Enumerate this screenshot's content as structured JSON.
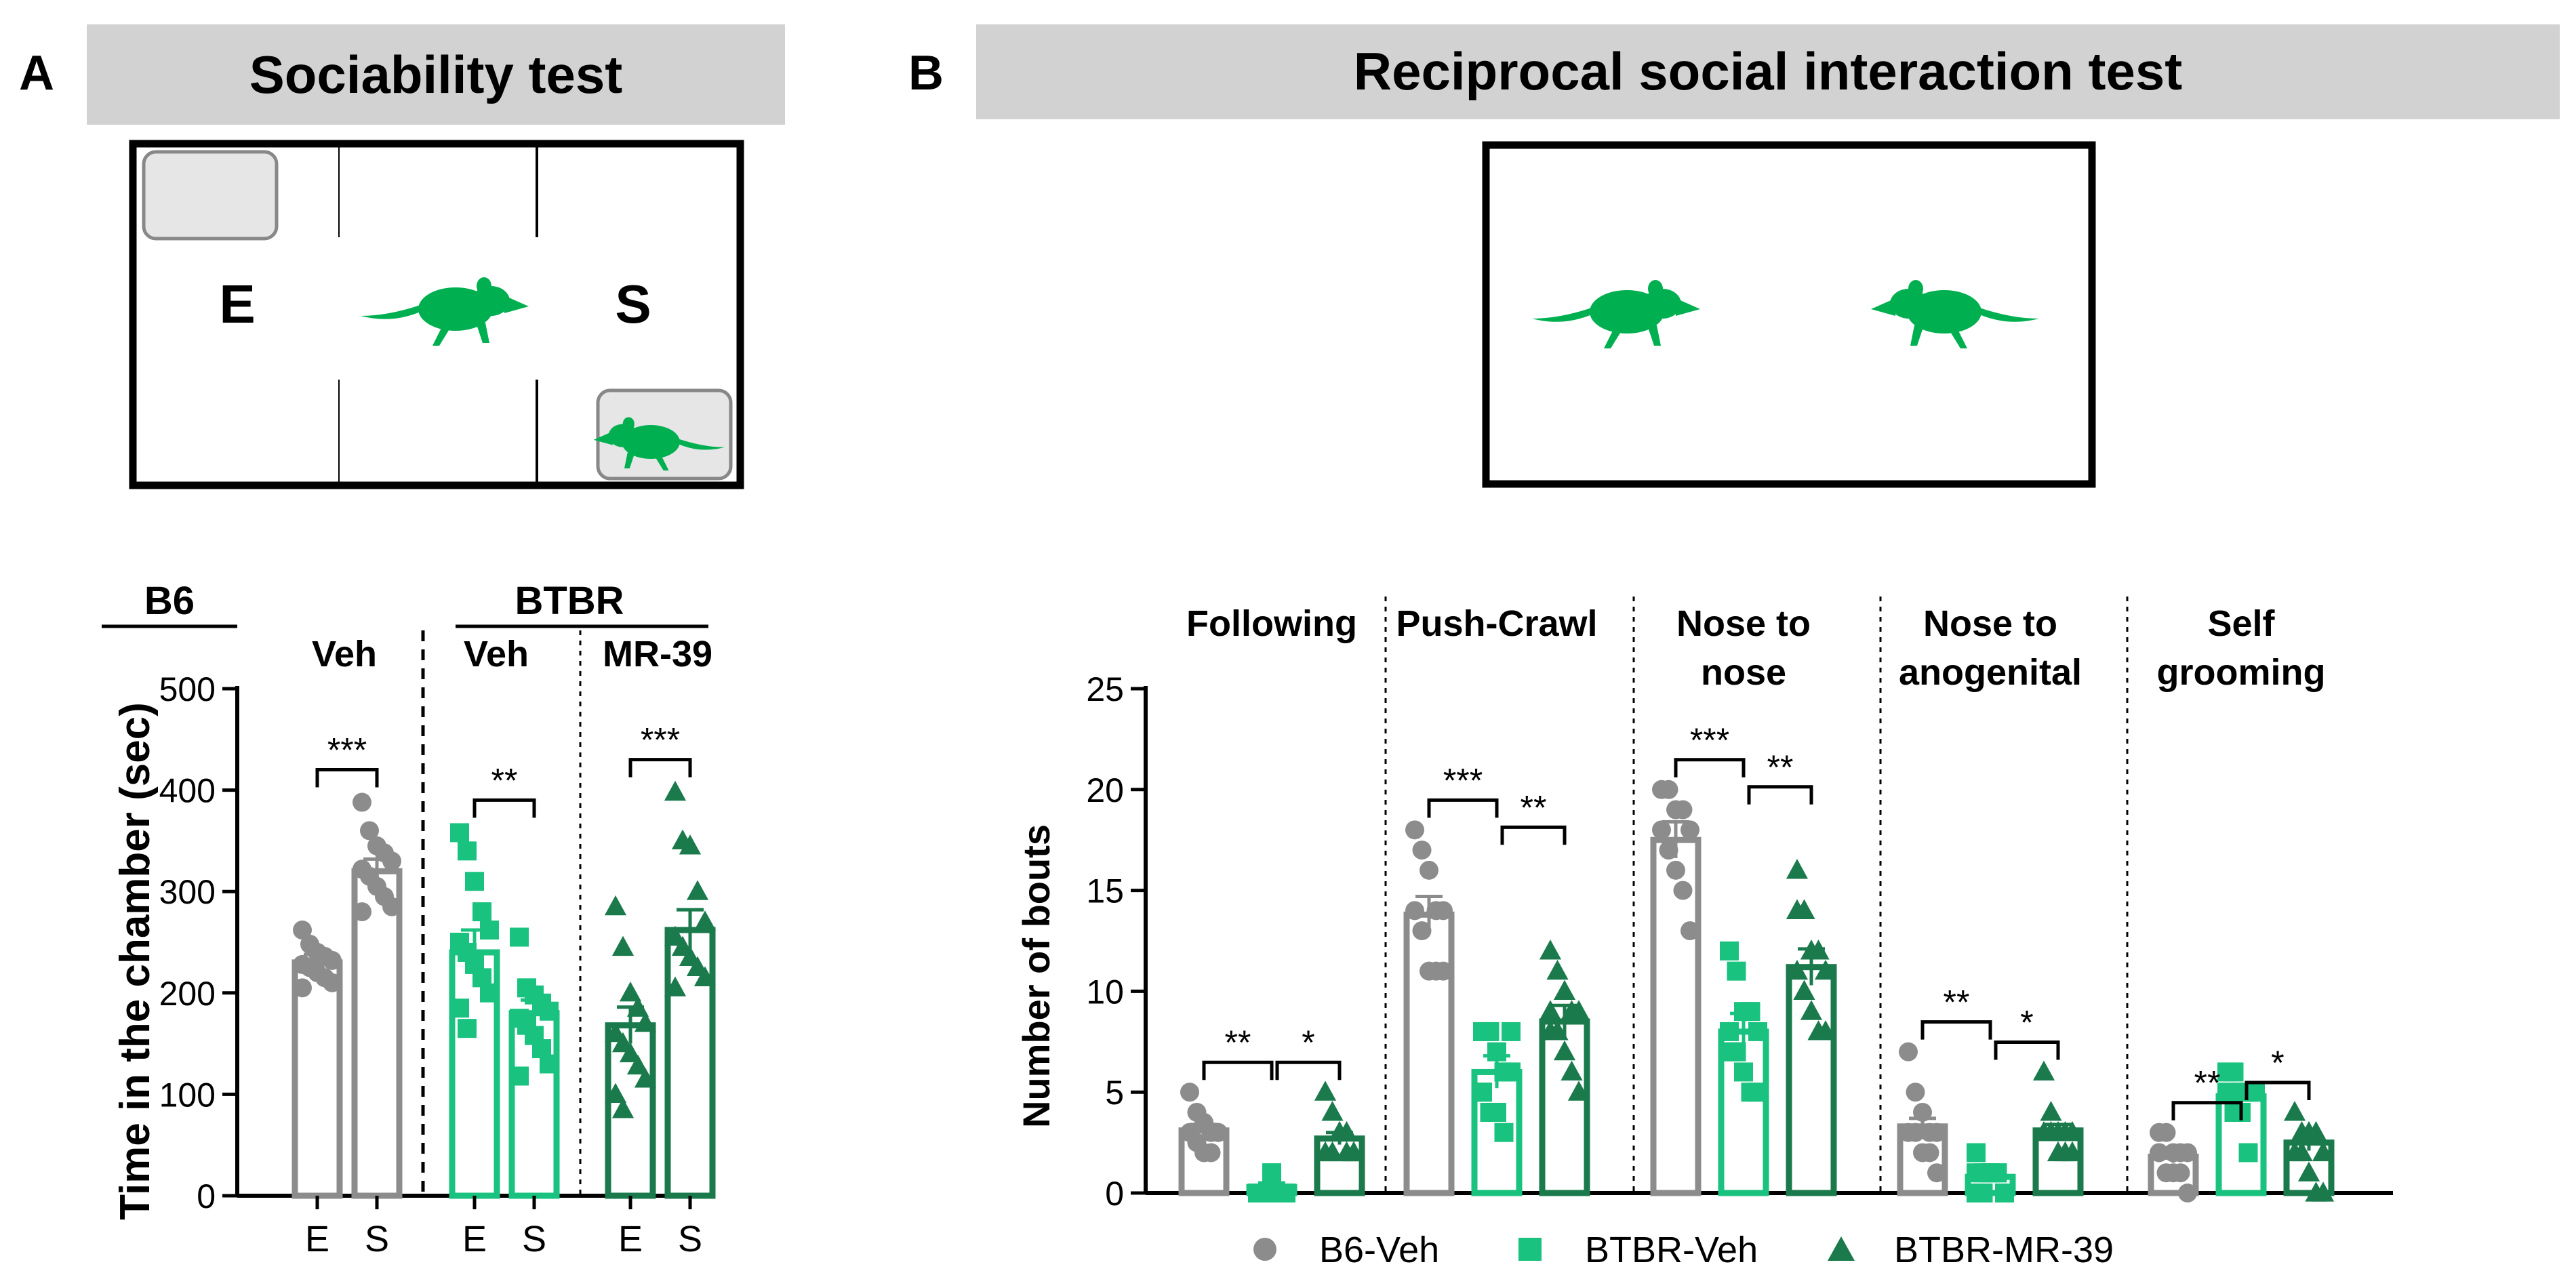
{
  "panel_a": {
    "letter": "A",
    "title": "Sociability test",
    "chamber_labels": {
      "empty": "E",
      "social": "S"
    }
  },
  "panel_b": {
    "letter": "B",
    "title": "Reciprocal social interaction test"
  },
  "legend": {
    "b6_veh": "B6-Veh",
    "btbr_veh": "BTBR-Veh",
    "btbr_mr39": "BTBR-MR-39"
  },
  "colors": {
    "b6": "#8c8c8c",
    "btbr_veh": "#19c27f",
    "btbr_mr39": "#1a7a4c",
    "mouse": "#00b050",
    "header_bg": "#d2d2d2"
  },
  "chart_data": [
    {
      "type": "bar",
      "title": "",
      "ylabel": "Time in the chamber (sec)",
      "xlabel": "",
      "ylim": [
        0,
        500
      ],
      "yticks": [
        0,
        100,
        200,
        300,
        400,
        500
      ],
      "group_headers": {
        "strain_b6": "B6",
        "strain_btbr": "BTBR",
        "treat_b6": "Veh",
        "treat_btbr_veh": "Veh",
        "treat_btbr_mr39": "MR-39"
      },
      "groups": [
        {
          "name": "B6-Veh",
          "marker": "circle",
          "color": "#8c8c8c",
          "bars": [
            {
              "label": "E",
              "mean": 230,
              "sem": 8,
              "points": [
                262,
                248,
                240,
                236,
                232,
                228,
                225,
                220,
                215,
                210,
                205
              ]
            },
            {
              "label": "S",
              "mean": 320,
              "sem": 12,
              "points": [
                388,
                360,
                345,
                338,
                330,
                322,
                315,
                305,
                295,
                285,
                280
              ]
            }
          ],
          "significance": "***"
        },
        {
          "name": "BTBR-Veh",
          "marker": "square",
          "color": "#19c27f",
          "bars": [
            {
              "label": "E",
              "mean": 240,
              "sem": 22,
              "points": [
                358,
                340,
                310,
                280,
                262,
                250,
                240,
                228,
                215,
                200,
                185,
                165
              ]
            },
            {
              "label": "S",
              "mean": 180,
              "sem": 13,
              "points": [
                255,
                205,
                198,
                190,
                182,
                175,
                168,
                158,
                145,
                130,
                118
              ]
            }
          ],
          "significance": "**"
        },
        {
          "name": "BTBR-MR-39",
          "marker": "triangle",
          "color": "#1a7a4c",
          "bars": [
            {
              "label": "E",
              "mean": 168,
              "sem": 18,
              "points": [
                285,
                245,
                200,
                185,
                170,
                160,
                150,
                140,
                128,
                115,
                100,
                85
              ]
            },
            {
              "label": "S",
              "mean": 262,
              "sem": 20,
              "points": [
                398,
                350,
                345,
                300,
                270,
                255,
                245,
                235,
                225,
                215,
                205
              ]
            }
          ],
          "significance": "***"
        }
      ]
    },
    {
      "type": "bar",
      "title": "",
      "ylabel": "Number of bouts",
      "xlabel": "",
      "ylim": [
        0,
        25
      ],
      "yticks": [
        0,
        5,
        10,
        15,
        20,
        25
      ],
      "series_names": [
        "B6-Veh",
        "BTBR-Veh",
        "BTBR-MR-39"
      ],
      "categories": [
        {
          "label_lines": [
            "Following"
          ],
          "means": [
            3.1,
            0.3,
            2.7
          ],
          "sems": [
            0.3,
            0.2,
            0.3
          ],
          "points": [
            [
              5,
              4,
              3.5,
              3,
              3,
              3,
              2.5,
              2,
              2,
              3
            ],
            [
              0,
              0,
              1,
              0,
              0,
              0,
              0,
              1,
              0,
              0,
              0
            ],
            [
              5,
              4,
              3,
              3,
              2,
              2,
              2,
              3,
              2,
              2
            ]
          ],
          "sig_a": "**",
          "sig_b": "*"
        },
        {
          "label_lines": [
            "Push-Crawl"
          ],
          "means": [
            13.8,
            6,
            8.5
          ],
          "sems": [
            0.9,
            0.8,
            0.8
          ],
          "points": [
            [
              18,
              17,
              16,
              14,
              14,
              14,
              13,
              11,
              11,
              11
            ],
            [
              8,
              8,
              7,
              6,
              6,
              5,
              4,
              4,
              3,
              8,
              5
            ],
            [
              12,
              11,
              10,
              9,
              9,
              8,
              8,
              7,
              6,
              5,
              9
            ]
          ],
          "sig_a": "***",
          "sig_b": "**"
        },
        {
          "label_lines": [
            "Nose to",
            "nose"
          ],
          "means": [
            17.5,
            8,
            11.2
          ],
          "sems": [
            0.9,
            0.9,
            0.9
          ],
          "points": [
            [
              20,
              20,
              19,
              19,
              18,
              18,
              17,
              16,
              15,
              13
            ],
            [
              12,
              11,
              9,
              9,
              8,
              7,
              7,
              6,
              5,
              5,
              8
            ],
            [
              16,
              14,
              12,
              12,
              11,
              11,
              10,
              9,
              8,
              8,
              14
            ]
          ],
          "sig_a": "***",
          "sig_b": "**"
        },
        {
          "label_lines": [
            "Nose to",
            "anogenital"
          ],
          "means": [
            3.3,
            0.8,
            3.1
          ],
          "sems": [
            0.4,
            0.2,
            0.3
          ],
          "points": [
            [
              7,
              5,
              4,
              3,
              3,
              3,
              3,
              2,
              2,
              1
            ],
            [
              2,
              1,
              1,
              1,
              0,
              0,
              0,
              1,
              1,
              0,
              1
            ],
            [
              6,
              4,
              3,
              3,
              3,
              3,
              3,
              2,
              2,
              2
            ]
          ],
          "sig_a": "**",
          "sig_b": "*"
        },
        {
          "label_lines": [
            "Self",
            "grooming"
          ],
          "means": [
            1.8,
            4.8,
            2.5
          ],
          "sems": [
            0.3,
            0.4,
            0.4
          ],
          "points": [
            [
              3,
              3,
              2,
              2,
              2,
              2,
              1,
              1,
              1,
              0
            ],
            [
              6,
              6,
              5,
              5,
              5,
              5,
              4,
              4,
              2,
              5
            ],
            [
              4,
              3,
              3,
              3,
              2,
              2,
              2,
              1,
              0,
              0
            ]
          ],
          "sig_a": "**",
          "sig_b": "*"
        }
      ]
    }
  ]
}
